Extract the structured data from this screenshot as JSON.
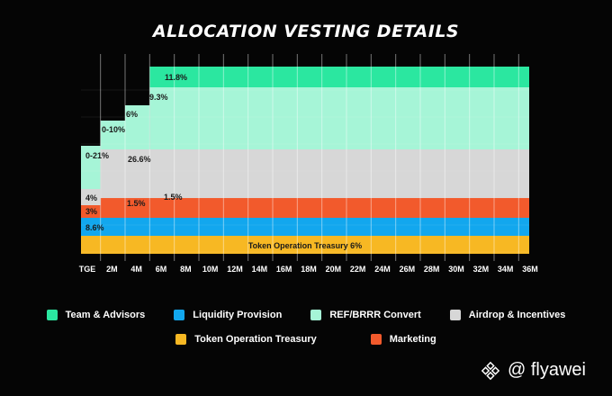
{
  "title": "ALLOCATION VESTING DETAILS",
  "chart_data": {
    "type": "area",
    "x_ticks": [
      "TGE",
      "2M",
      "4M",
      "6M",
      "8M",
      "10M",
      "12M",
      "14M",
      "16M",
      "18M",
      "20M",
      "22M",
      "24M",
      "26M",
      "28M",
      "30M",
      "32M",
      "34M",
      "36M"
    ],
    "series": [
      {
        "name": "Token Operation Treasury",
        "color": "#F7B823",
        "segments": [
          {
            "from": "TGE",
            "to": "36M",
            "label": "Token Operation Treasury 6%"
          }
        ]
      },
      {
        "name": "Liquidity Provision",
        "color": "#12A7EE",
        "segments": [
          {
            "from": "TGE",
            "to": "36M",
            "label": "8.6%"
          }
        ]
      },
      {
        "name": "Marketing",
        "color": "#F25A2C",
        "segments": [
          {
            "from": "TGE",
            "to": "2M",
            "label": "3%"
          },
          {
            "from": "2M",
            "to": "6M",
            "label": "1.5%"
          },
          {
            "from": "6M",
            "to": "36M",
            "label": "1.5%"
          }
        ]
      },
      {
        "name": "Airdrop & Incentives",
        "color": "#D7D7D7",
        "segments": [
          {
            "from": "TGE",
            "to": "2M",
            "label": "4%"
          },
          {
            "from": "2M",
            "to": "36M",
            "label": "26.6%"
          }
        ]
      },
      {
        "name": "REF/BRRR Convert",
        "color": "#A6F5D7",
        "segments": [
          {
            "from": "TGE",
            "to": "36M",
            "label": "0-21%"
          },
          {
            "from": "2M",
            "to": "36M",
            "label": "0-10%"
          },
          {
            "from": "4M",
            "to": "36M",
            "label": "6%"
          },
          {
            "from": "6M",
            "to": "36M",
            "label": "9.3%"
          }
        ]
      },
      {
        "name": "Team & Advisors",
        "color": "#2BE7A0",
        "segments": [
          {
            "from": "6M",
            "to": "36M",
            "label": "11.8%"
          }
        ]
      }
    ],
    "legend": [
      [
        "Team & Advisors",
        "Liquidity Provision",
        "REF/BRRR Convert",
        "Airdrop & Incentives"
      ],
      [
        "Token Operation Treasury",
        "Marketing"
      ]
    ],
    "grid": true,
    "legend_position": "bottom"
  },
  "colors": {
    "background": "#050505",
    "team": "#2BE7A0",
    "liquidity": "#12A7EE",
    "ref": "#A6F5D7",
    "airdrop": "#D7D7D7",
    "treasury": "#F7B823",
    "marketing": "#F25A2C"
  },
  "watermark": {
    "text": "@ flyawei",
    "icon": "binance-logo-icon"
  }
}
